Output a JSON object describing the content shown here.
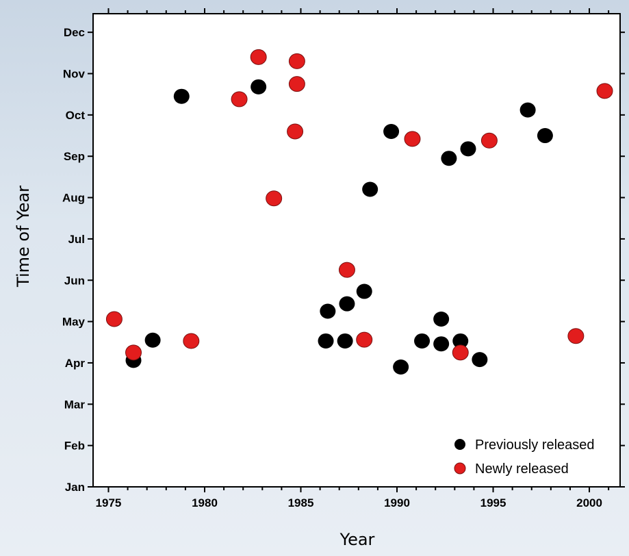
{
  "chart_data": {
    "type": "scatter",
    "xlabel": "Year",
    "ylabel": "Time of Year",
    "xlim": [
      1974.2,
      2001.6
    ],
    "ylim": [
      0,
      11.45
    ],
    "x_ticks": [
      1975,
      1980,
      1985,
      1990,
      1995,
      2000
    ],
    "y_ticks": [
      {
        "label": "Jan",
        "value": 0
      },
      {
        "label": "Feb",
        "value": 1
      },
      {
        "label": "Mar",
        "value": 2
      },
      {
        "label": "Apr",
        "value": 3
      },
      {
        "label": "May",
        "value": 4
      },
      {
        "label": "Jun",
        "value": 5
      },
      {
        "label": "Jul",
        "value": 6
      },
      {
        "label": "Aug",
        "value": 7
      },
      {
        "label": "Sep",
        "value": 8
      },
      {
        "label": "Oct",
        "value": 9
      },
      {
        "label": "Nov",
        "value": 10
      },
      {
        "label": "Dec",
        "value": 11
      }
    ],
    "grid": false,
    "legend_position": "bottom-right",
    "series": [
      {
        "name": "Previously released",
        "color": "#000000",
        "points": [
          {
            "x": 1976.3,
            "y": 3.06
          },
          {
            "x": 1977.3,
            "y": 3.55
          },
          {
            "x": 1978.8,
            "y": 9.45
          },
          {
            "x": 1982.8,
            "y": 9.68
          },
          {
            "x": 1986.3,
            "y": 3.53
          },
          {
            "x": 1986.4,
            "y": 4.25
          },
          {
            "x": 1987.3,
            "y": 3.53
          },
          {
            "x": 1987.4,
            "y": 4.43
          },
          {
            "x": 1988.3,
            "y": 4.73
          },
          {
            "x": 1988.6,
            "y": 7.2
          },
          {
            "x": 1989.7,
            "y": 8.6
          },
          {
            "x": 1990.2,
            "y": 2.9
          },
          {
            "x": 1991.3,
            "y": 3.53
          },
          {
            "x": 1992.3,
            "y": 3.46
          },
          {
            "x": 1992.3,
            "y": 4.06
          },
          {
            "x": 1992.7,
            "y": 7.95
          },
          {
            "x": 1993.3,
            "y": 3.53
          },
          {
            "x": 1993.7,
            "y": 8.18
          },
          {
            "x": 1994.3,
            "y": 3.08
          },
          {
            "x": 1996.8,
            "y": 9.12
          },
          {
            "x": 1997.7,
            "y": 8.5
          }
        ]
      },
      {
        "name": "Newly released",
        "color": "#e21d1d",
        "points": [
          {
            "x": 1975.3,
            "y": 4.06
          },
          {
            "x": 1976.3,
            "y": 3.25
          },
          {
            "x": 1979.3,
            "y": 3.53
          },
          {
            "x": 1981.8,
            "y": 9.38
          },
          {
            "x": 1982.8,
            "y": 10.4
          },
          {
            "x": 1983.6,
            "y": 6.98
          },
          {
            "x": 1984.7,
            "y": 8.6
          },
          {
            "x": 1984.8,
            "y": 9.75
          },
          {
            "x": 1984.8,
            "y": 10.3
          },
          {
            "x": 1987.4,
            "y": 5.25
          },
          {
            "x": 1988.3,
            "y": 3.56
          },
          {
            "x": 1990.8,
            "y": 8.42
          },
          {
            "x": 1993.3,
            "y": 3.25
          },
          {
            "x": 1994.8,
            "y": 8.38
          },
          {
            "x": 1999.3,
            "y": 3.65
          },
          {
            "x": 2000.8,
            "y": 9.58
          }
        ]
      }
    ]
  }
}
